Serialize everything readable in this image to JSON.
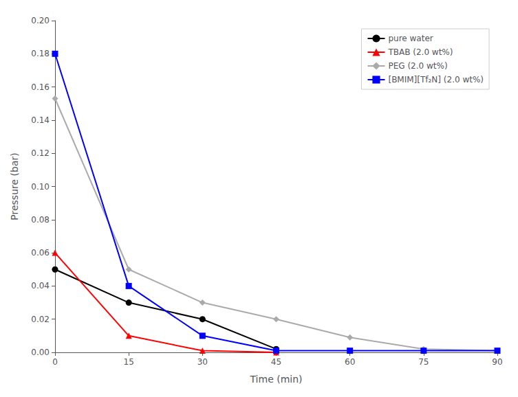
{
  "chart_data": {
    "type": "line",
    "xlabel": "Time (min)",
    "ylabel": "Pressure (bar)",
    "series": [
      {
        "name": "pure water",
        "color": "black",
        "marker": "circle",
        "x": [
          0,
          15,
          30,
          45
        ],
        "values": [
          0.05,
          0.03,
          0.02,
          0.002
        ]
      },
      {
        "name": "TBAB (2.0 wt%)",
        "color": "red",
        "marker": "triangle",
        "x": [
          0,
          15,
          30,
          45
        ],
        "values": [
          0.06,
          0.01,
          0.001,
          0.0
        ]
      },
      {
        "name": "PEG (2.0 wt%)",
        "color": "#aaaaaa",
        "marker": "diamond",
        "x": [
          0,
          15,
          30,
          45,
          60,
          75,
          90
        ],
        "values": [
          0.153,
          0.05,
          0.03,
          0.02,
          0.009,
          0.002,
          0.001
        ]
      },
      {
        "name": "[BMIM][Tf₂N] (2.0 wt%)",
        "color": "blue",
        "marker": "square",
        "x": [
          0,
          15,
          30,
          45,
          60,
          75,
          90
        ],
        "values": [
          0.18,
          0.04,
          0.01,
          0.001,
          0.001,
          0.001,
          0.001
        ]
      }
    ],
    "xlim": [
      0,
      90
    ],
    "ylim": [
      0.0,
      0.2
    ],
    "xticks": [
      0,
      15,
      30,
      45,
      60,
      75,
      90
    ],
    "yticks": [
      {
        "value": 0.0,
        "label": "0.00"
      },
      0.02,
      0.04,
      0.06,
      0.08,
      {
        "value": 0.1,
        "label": "0.10"
      },
      0.12,
      0.14,
      0.16,
      0.18,
      {
        "value": 0.2,
        "label": "0.20"
      }
    ],
    "grid": false,
    "legend": "upper right"
  }
}
